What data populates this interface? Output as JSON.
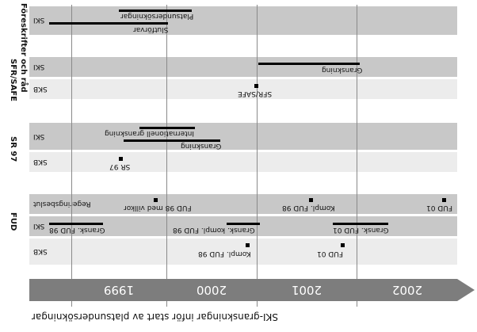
{
  "groups": [
    {
      "label": "Föreskrifter och råd",
      "rows": [
        {
          "label": "SKI"
        }
      ]
    },
    {
      "label": "SFR/SAFE",
      "rows": [
        {
          "label": "SKI"
        },
        {
          "label": "SKB"
        }
      ]
    },
    {
      "label": "SR 97",
      "rows": [
        {
          "label": "SKI"
        },
        {
          "label": "SKB"
        }
      ]
    },
    {
      "label": "FUD",
      "rows": [
        {
          "label": "Regeringsbeslut"
        },
        {
          "label": "SKI"
        },
        {
          "label": "SKB"
        }
      ]
    }
  ],
  "items": [
    {
      "label": "Platsundersökningar"
    },
    {
      "label": "Slutförvar"
    },
    {
      "label": "Granskning"
    },
    {
      "label": "SFR/SAFE"
    },
    {
      "label": "Internationell granskning"
    },
    {
      "label": "Granskning"
    },
    {
      "label": "SR 97"
    },
    {
      "label": "FUD 98 med villkor"
    },
    {
      "label": "Kompl. FUD 98"
    },
    {
      "label": "FUD 01"
    },
    {
      "label": "Gransk. FUD 98"
    },
    {
      "label": "Gransk. kompl. FUD 98"
    },
    {
      "label": "Gransk. FUD 01"
    },
    {
      "label": "Kompl. FUD 98"
    },
    {
      "label": "FUD 01"
    }
  ],
  "years": [
    "1999",
    "2000",
    "2001",
    "2002"
  ],
  "caption": "SKI-granskningar inför start av platsundersökningar",
  "colors": {
    "dark_band": "#c8c8c8",
    "light_band": "#ececec",
    "timeline": "#7d7d7d",
    "bars": "#000000"
  }
}
